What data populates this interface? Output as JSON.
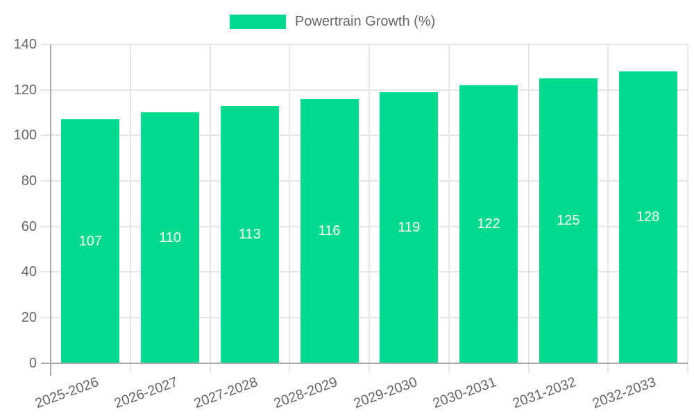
{
  "chart_data": {
    "type": "bar",
    "categories": [
      "2025-2026",
      "2026-2027",
      "2027-2028",
      "2028-2029",
      "2029-2030",
      "2030-2031",
      "2031-2032",
      "2032-2033"
    ],
    "series": [
      {
        "name": "Powertrain Growth (%)",
        "values": [
          107,
          110,
          113,
          116,
          119,
          122,
          125,
          128
        ]
      }
    ],
    "title": "",
    "xlabel": "",
    "ylabel": "",
    "ylim": [
      0,
      140
    ],
    "y_ticks": [
      0,
      20,
      40,
      60,
      80,
      100,
      120,
      140
    ],
    "grid": true,
    "x_gridlines": "category-boundaries",
    "legend_position": "top-center",
    "data_labels": "inside-middle-white",
    "colors": {
      "bar": "#00DA8F",
      "bar_label": "#FFFFFF",
      "axis_text": "#666666",
      "grid_line": "#E6E6E9",
      "axis_line": "#A8A8AD",
      "background": "#FFFFFF"
    }
  }
}
